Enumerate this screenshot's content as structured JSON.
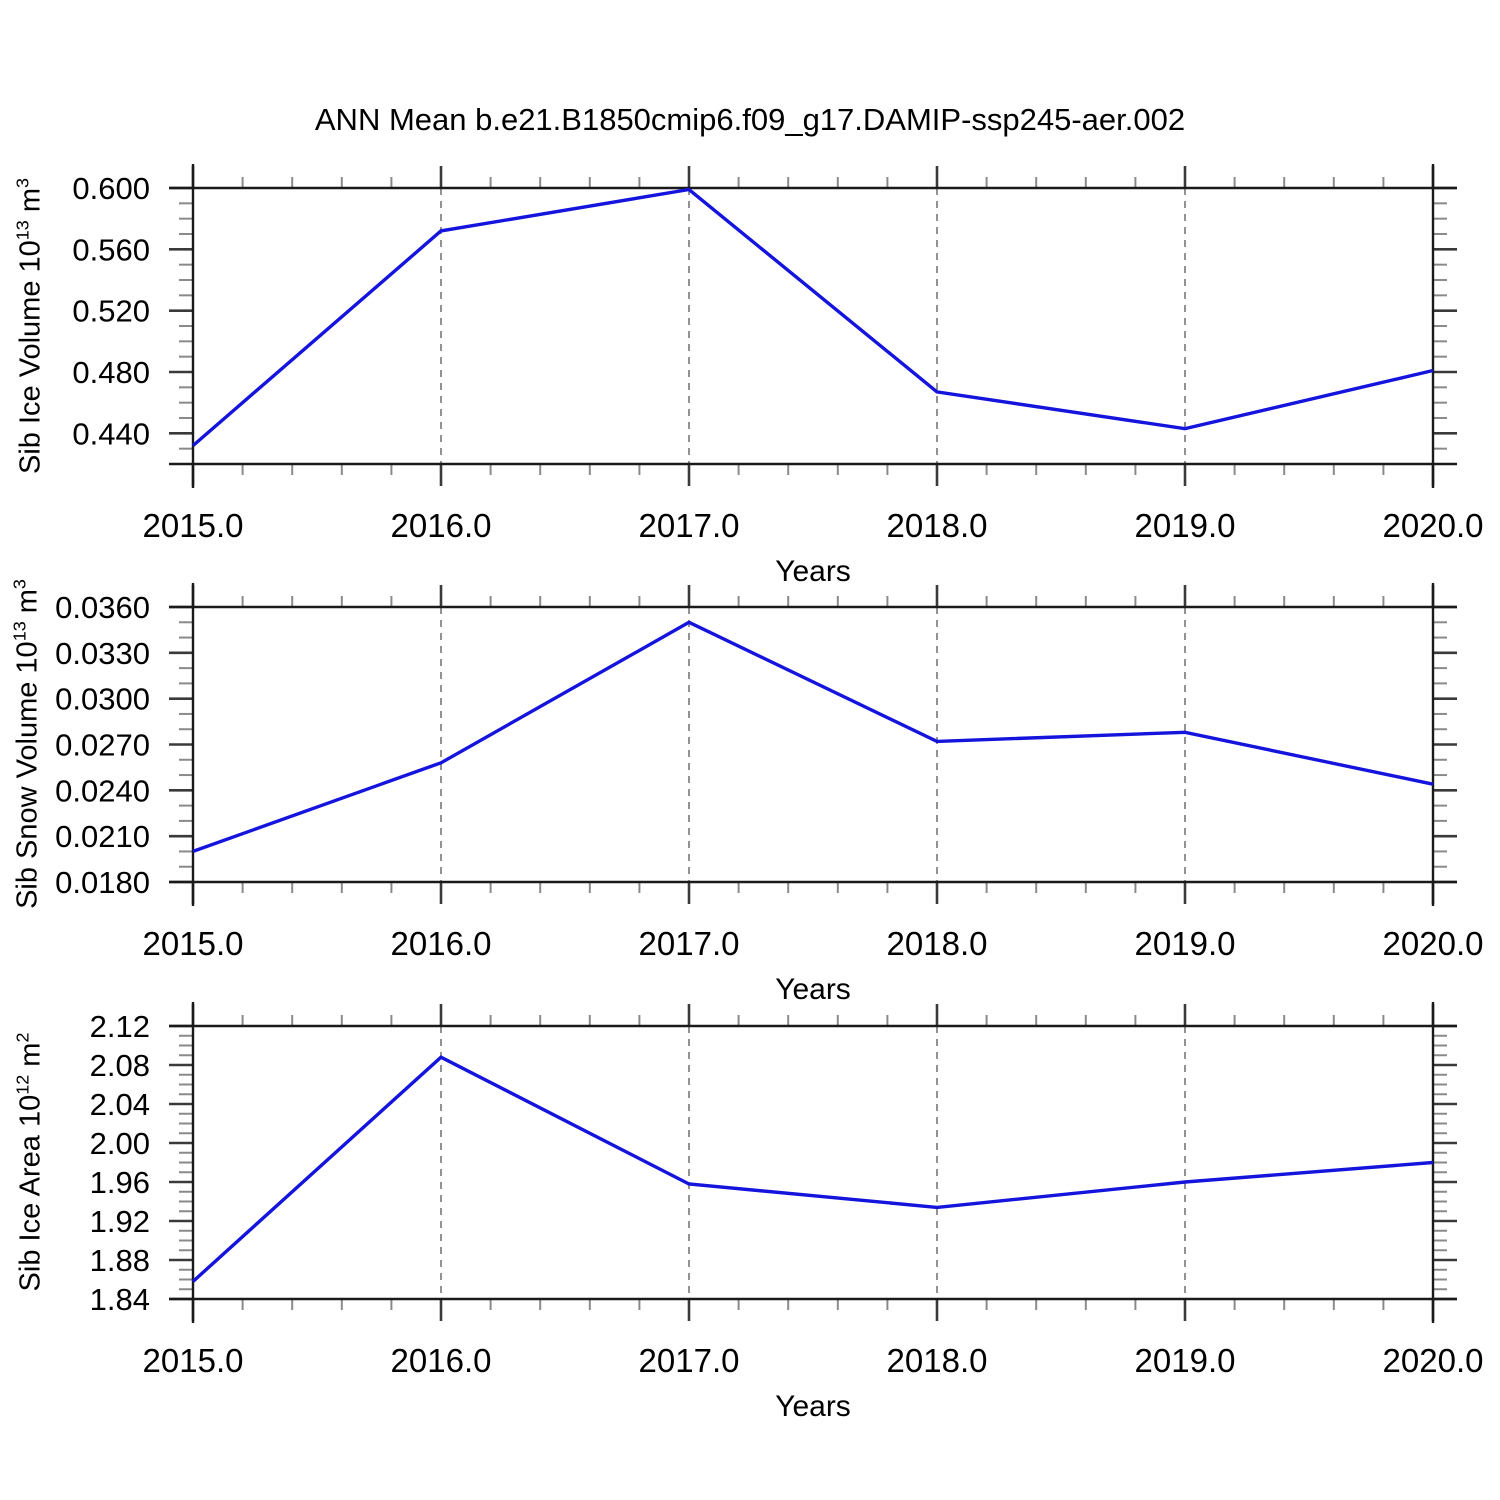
{
  "title": "ANN Mean b.e21.B1850cmip6.f09_g17.DAMIP-ssp245-aer.002",
  "colors": {
    "line": "#1414dd",
    "frame": "#1a1a1a",
    "major_tick": "#3a3a3a",
    "minor_tick": "#8a8a8a",
    "grid": "#787878",
    "text": "#000000"
  },
  "chart_data": [
    {
      "type": "line",
      "panel": "sib-ice-volume",
      "ylabel": "Sib Ice Volume 10^13 m^3",
      "ylabel_rich": {
        "base": "Sib Ice Volume 10",
        "sup1": "13",
        "mid": " m",
        "sup2": "3"
      },
      "xlabel": "Years",
      "x": [
        2015,
        2016,
        2017,
        2018,
        2019,
        2020
      ],
      "values": [
        0.432,
        0.572,
        0.599,
        0.467,
        0.443,
        0.481
      ],
      "xlim": [
        2015,
        2020
      ],
      "ylim": [
        0.42,
        0.6
      ],
      "yticks": [
        0.6,
        0.56,
        0.52,
        0.48,
        0.44
      ],
      "ytick_labels": [
        "0.600",
        "0.560",
        "0.520",
        "0.480",
        "0.440"
      ],
      "yminor_step": 0.01,
      "xminor_step": 0.2,
      "grid_x": [
        2016,
        2017,
        2018,
        2019
      ],
      "xtick_labels": [
        "2015.0",
        "2016.0",
        "2017.0",
        "2018.0",
        "2019.0",
        "2020.0"
      ],
      "legend": "none",
      "grid_style": "vertical-dashed"
    },
    {
      "type": "line",
      "panel": "sib-snow-volume",
      "ylabel": "Sib Snow Volume 10^13 m^3",
      "ylabel_rich": {
        "base": "Sib Snow Volume 10",
        "sup1": "13",
        "mid": " m",
        "sup2": "3"
      },
      "xlabel": "Years",
      "x": [
        2015,
        2016,
        2017,
        2018,
        2019,
        2020
      ],
      "values": [
        0.02,
        0.0258,
        0.035,
        0.0272,
        0.0278,
        0.0244
      ],
      "xlim": [
        2015,
        2020
      ],
      "ylim": [
        0.018,
        0.036
      ],
      "yticks": [
        0.036,
        0.033,
        0.03,
        0.027,
        0.024,
        0.021,
        0.018
      ],
      "ytick_labels": [
        "0.0360",
        "0.0330",
        "0.0300",
        "0.0270",
        "0.0240",
        "0.0210",
        "0.0180"
      ],
      "yminor_step": 0.001,
      "xminor_step": 0.2,
      "grid_x": [
        2016,
        2017,
        2018,
        2019
      ],
      "xtick_labels": [
        "2015.0",
        "2016.0",
        "2017.0",
        "2018.0",
        "2019.0",
        "2020.0"
      ],
      "legend": "none",
      "grid_style": "vertical-dashed"
    },
    {
      "type": "line",
      "panel": "sib-ice-area",
      "ylabel": "Sib Ice Area 10^12 m^2",
      "ylabel_rich": {
        "base": "Sib Ice Area 10",
        "sup1": "12",
        "mid": " m",
        "sup2": "2"
      },
      "xlabel": "Years",
      "x": [
        2015,
        2016,
        2017,
        2018,
        2019,
        2020
      ],
      "values": [
        1.858,
        2.088,
        1.958,
        1.934,
        1.96,
        1.98
      ],
      "xlim": [
        2015,
        2020
      ],
      "ylim": [
        1.84,
        2.12
      ],
      "yticks": [
        2.12,
        2.08,
        2.04,
        2.0,
        1.96,
        1.92,
        1.88,
        1.84
      ],
      "ytick_labels": [
        "2.12",
        "2.08",
        "2.04",
        "2.00",
        "1.96",
        "1.92",
        "1.88",
        "1.84"
      ],
      "yminor_step": 0.01,
      "xminor_step": 0.2,
      "grid_x": [
        2016,
        2017,
        2018,
        2019
      ],
      "xtick_labels": [
        "2015.0",
        "2016.0",
        "2017.0",
        "2018.0",
        "2019.0",
        "2020.0"
      ],
      "legend": "none",
      "grid_style": "vertical-dashed"
    }
  ]
}
